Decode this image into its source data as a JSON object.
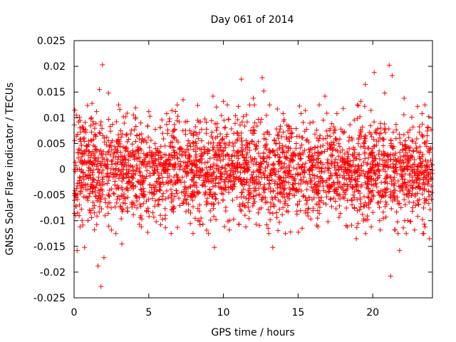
{
  "chart_data": {
    "type": "scatter",
    "title": "Day 061 of 2014",
    "xlabel": "GPS time / hours",
    "ylabel": "GNSS Solar Flare indicator / TECUs",
    "xlim": [
      0,
      24
    ],
    "ylim": [
      -0.025,
      0.025
    ],
    "x_ticks": [
      "0",
      "5",
      "10",
      "15",
      "20"
    ],
    "x_tick_values": [
      0,
      5,
      10,
      15,
      20
    ],
    "y_ticks": [
      "-0.025",
      "-0.02",
      "-0.015",
      "-0.01",
      "-0.005",
      "0",
      "0.005",
      "0.01",
      "0.015",
      "0.02",
      "0.025"
    ],
    "y_tick_values": [
      -0.025,
      -0.02,
      -0.015,
      -0.01,
      -0.005,
      0,
      0.005,
      0.01,
      0.015,
      0.02,
      0.025
    ],
    "marker": "+",
    "grid": false,
    "legend": "none",
    "series": [
      {
        "color": "#ff0000",
        "points": [
          [
            0.05,
            0.0115
          ],
          [
            0.1,
            -0.009
          ],
          [
            0.15,
            0.0105
          ],
          [
            0.2,
            -0.0158
          ],
          [
            0.3,
            0.0092
          ],
          [
            0.4,
            -0.0112
          ],
          [
            0.6,
            0.0082
          ],
          [
            0.7,
            -0.0152
          ],
          [
            0.9,
            0.0124
          ],
          [
            1.1,
            -0.0085
          ],
          [
            1.2,
            0.0128
          ],
          [
            1.5,
            0.0112
          ],
          [
            1.6,
            -0.0188
          ],
          [
            1.7,
            0.0155
          ],
          [
            1.8,
            -0.0228
          ],
          [
            1.9,
            0.0203
          ],
          [
            2.0,
            -0.0172
          ],
          [
            2.3,
            0.0148
          ],
          [
            2.5,
            -0.0118
          ],
          [
            2.8,
            -0.0125
          ],
          [
            3.2,
            -0.0145
          ],
          [
            3.3,
            0.0102
          ],
          [
            4.1,
            0.0098
          ],
          [
            4.5,
            -0.0112
          ],
          [
            5.0,
            0.0112
          ],
          [
            5.5,
            -0.0102
          ],
          [
            6.2,
            0.0108
          ],
          [
            6.5,
            -0.0125
          ],
          [
            7.3,
            0.0135
          ],
          [
            7.8,
            -0.0085
          ],
          [
            8.5,
            -0.0095
          ],
          [
            9.0,
            -0.0125
          ],
          [
            9.3,
            0.0142
          ],
          [
            9.4,
            -0.0152
          ],
          [
            9.5,
            -0.0098
          ],
          [
            10.0,
            0.0132
          ],
          [
            10.4,
            -0.0118
          ],
          [
            11.0,
            0.0122
          ],
          [
            11.2,
            0.0175
          ],
          [
            11.5,
            -0.0112
          ],
          [
            12.0,
            0.0138
          ],
          [
            12.6,
            0.0178
          ],
          [
            12.7,
            0.0152
          ],
          [
            12.9,
            -0.0108
          ],
          [
            13.1,
            0.0125
          ],
          [
            13.3,
            -0.0152
          ],
          [
            14.0,
            0.0108
          ],
          [
            14.5,
            -0.0122
          ],
          [
            15.2,
            0.0108
          ],
          [
            15.5,
            -0.0085
          ],
          [
            16.0,
            0.0092
          ],
          [
            16.3,
            -0.0095
          ],
          [
            16.8,
            0.0142
          ],
          [
            17.0,
            -0.0102
          ],
          [
            17.6,
            0.0108
          ],
          [
            18.3,
            -0.0112
          ],
          [
            18.9,
            -0.0135
          ],
          [
            19.2,
            0.0132
          ],
          [
            19.5,
            0.0165
          ],
          [
            19.9,
            -0.0112
          ],
          [
            20.1,
            0.0188
          ],
          [
            20.5,
            -0.0118
          ],
          [
            20.8,
            0.0148
          ],
          [
            21.1,
            0.0202
          ],
          [
            21.2,
            -0.0208
          ],
          [
            21.3,
            0.0182
          ],
          [
            21.5,
            -0.0118
          ],
          [
            21.8,
            -0.0158
          ],
          [
            22.1,
            0.0138
          ],
          [
            22.5,
            -0.0102
          ],
          [
            22.8,
            -0.0118
          ],
          [
            23.0,
            0.0122
          ],
          [
            23.3,
            0.0108
          ],
          [
            23.5,
            -0.0112
          ],
          [
            23.7,
            0.0082
          ],
          [
            23.8,
            -0.0135
          ]
        ],
        "bulk_points": {
          "count": 2800,
          "x_range": [
            0,
            24
          ],
          "center": 0,
          "spread": 0.0048,
          "clip": [
            -0.0125,
            0.0125
          ]
        }
      }
    ]
  }
}
